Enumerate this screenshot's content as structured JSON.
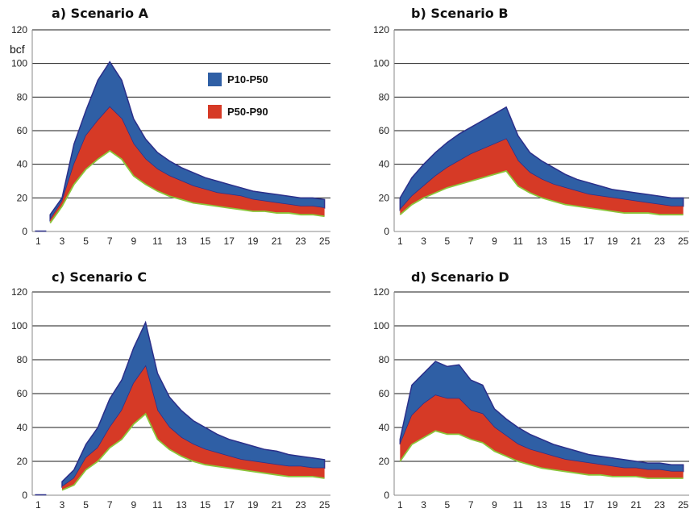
{
  "colors": {
    "p10_p50": "#2f5fa5",
    "p10_p50_edge": "#2b2f8a",
    "p50_p90": "#d63a26",
    "p90_line": "#8bc63a",
    "grid": "#1a1a1a",
    "axis": "#888888"
  },
  "chart_data": [
    {
      "type": "area",
      "title": "a) Scenario A",
      "ylabel": "bcf",
      "xlabel": "",
      "ylim": [
        0,
        120
      ],
      "yticks": [
        0,
        20,
        40,
        60,
        80,
        100,
        120
      ],
      "xticks": [
        1,
        3,
        5,
        7,
        9,
        11,
        13,
        15,
        17,
        19,
        21,
        23,
        25
      ],
      "grid": true,
      "legend_position": "top-right",
      "legend": [
        "P10-P50",
        "P50-P90"
      ],
      "x": [
        2,
        3,
        4,
        5,
        6,
        7,
        8,
        9,
        10,
        11,
        12,
        13,
        14,
        15,
        16,
        17,
        18,
        19,
        20,
        21,
        22,
        23,
        24,
        25
      ],
      "series": [
        {
          "name": "P10-P50",
          "values": [
            10,
            20,
            52,
            72,
            90,
            101,
            90,
            67,
            55,
            47,
            42,
            38,
            35,
            32,
            30,
            28,
            26,
            24,
            23,
            22,
            21,
            20,
            20,
            19
          ]
        },
        {
          "name": "P50-P90",
          "values": [
            7,
            18,
            40,
            57,
            66,
            74,
            67,
            52,
            43,
            37,
            33,
            30,
            27,
            25,
            23,
            22,
            21,
            19,
            18,
            17,
            16,
            15,
            15,
            14
          ]
        },
        {
          "name": "",
          "values": [
            5,
            15,
            28,
            37,
            43,
            48,
            43,
            33,
            28,
            24,
            21,
            19,
            17,
            16,
            15,
            14,
            13,
            12,
            12,
            11,
            11,
            10,
            10,
            9
          ]
        }
      ]
    },
    {
      "type": "area",
      "title": "b) Scenario B",
      "ylabel": "",
      "xlabel": "",
      "ylim": [
        0,
        120
      ],
      "yticks": [
        0,
        20,
        40,
        60,
        80,
        100,
        120
      ],
      "xticks": [
        1,
        3,
        5,
        7,
        9,
        11,
        13,
        15,
        17,
        19,
        21,
        23,
        25
      ],
      "grid": true,
      "legend": [],
      "x": [
        1,
        2,
        3,
        4,
        5,
        6,
        7,
        8,
        9,
        10,
        11,
        12,
        13,
        14,
        15,
        16,
        17,
        18,
        19,
        20,
        21,
        22,
        23,
        24,
        25
      ],
      "series": [
        {
          "name": "P10-P50",
          "values": [
            20,
            32,
            40,
            47,
            53,
            58,
            62,
            66,
            70,
            74,
            57,
            47,
            42,
            38,
            34,
            31,
            29,
            27,
            25,
            24,
            23,
            22,
            21,
            20,
            20
          ]
        },
        {
          "name": "P50-P90",
          "values": [
            13,
            21,
            27,
            33,
            38,
            42,
            46,
            49,
            52,
            55,
            42,
            35,
            31,
            28,
            26,
            24,
            22,
            21,
            20,
            19,
            18,
            17,
            16,
            15,
            15
          ]
        },
        {
          "name": "",
          "values": [
            10,
            16,
            20,
            23,
            26,
            28,
            30,
            32,
            34,
            36,
            27,
            23,
            20,
            18,
            16,
            15,
            14,
            13,
            12,
            11,
            11,
            11,
            10,
            10,
            10
          ]
        }
      ]
    },
    {
      "type": "area",
      "title": "c) Scenario C",
      "ylabel": "",
      "xlabel": "",
      "ylim": [
        0,
        120
      ],
      "yticks": [
        0,
        20,
        40,
        60,
        80,
        100,
        120
      ],
      "xticks": [
        1,
        3,
        5,
        7,
        9,
        11,
        13,
        15,
        17,
        19,
        21,
        23,
        25
      ],
      "grid": true,
      "legend": [],
      "x": [
        3,
        4,
        5,
        6,
        7,
        8,
        9,
        10,
        11,
        12,
        13,
        14,
        15,
        16,
        17,
        18,
        19,
        20,
        21,
        22,
        23,
        24,
        25
      ],
      "series": [
        {
          "name": "P10-P50",
          "values": [
            8,
            15,
            30,
            40,
            57,
            68,
            87,
            102,
            72,
            58,
            50,
            44,
            40,
            36,
            33,
            31,
            29,
            27,
            26,
            24,
            23,
            22,
            21
          ]
        },
        {
          "name": "P50-P90",
          "values": [
            5,
            10,
            22,
            28,
            40,
            50,
            66,
            76,
            50,
            40,
            34,
            30,
            27,
            25,
            23,
            21,
            20,
            19,
            18,
            17,
            17,
            16,
            16
          ]
        },
        {
          "name": "",
          "values": [
            3,
            6,
            15,
            20,
            28,
            33,
            42,
            48,
            33,
            27,
            23,
            20,
            18,
            17,
            16,
            15,
            14,
            13,
            12,
            11,
            11,
            11,
            10
          ]
        }
      ]
    },
    {
      "type": "area",
      "title": "d) Scenario D",
      "ylabel": "",
      "xlabel": "",
      "ylim": [
        0,
        120
      ],
      "yticks": [
        0,
        20,
        40,
        60,
        80,
        100,
        120
      ],
      "xticks": [
        1,
        3,
        5,
        7,
        9,
        11,
        13,
        15,
        17,
        19,
        21,
        23,
        25
      ],
      "grid": true,
      "legend": [],
      "x": [
        1,
        2,
        3,
        4,
        5,
        6,
        7,
        8,
        9,
        10,
        11,
        12,
        13,
        14,
        15,
        16,
        17,
        18,
        19,
        20,
        21,
        22,
        23,
        24,
        25
      ],
      "series": [
        {
          "name": "P10-P50",
          "values": [
            33,
            65,
            72,
            79,
            76,
            77,
            68,
            65,
            51,
            45,
            40,
            36,
            33,
            30,
            28,
            26,
            24,
            23,
            22,
            21,
            20,
            19,
            19,
            18,
            18
          ]
        },
        {
          "name": "P50-P90",
          "values": [
            30,
            47,
            54,
            59,
            57,
            57,
            50,
            48,
            40,
            35,
            30,
            27,
            25,
            23,
            21,
            20,
            19,
            18,
            17,
            16,
            16,
            15,
            15,
            14,
            14
          ]
        },
        {
          "name": "",
          "values": [
            20,
            30,
            34,
            38,
            36,
            36,
            33,
            31,
            26,
            23,
            20,
            18,
            16,
            15,
            14,
            13,
            12,
            12,
            11,
            11,
            11,
            10,
            10,
            10,
            10
          ]
        }
      ]
    }
  ]
}
